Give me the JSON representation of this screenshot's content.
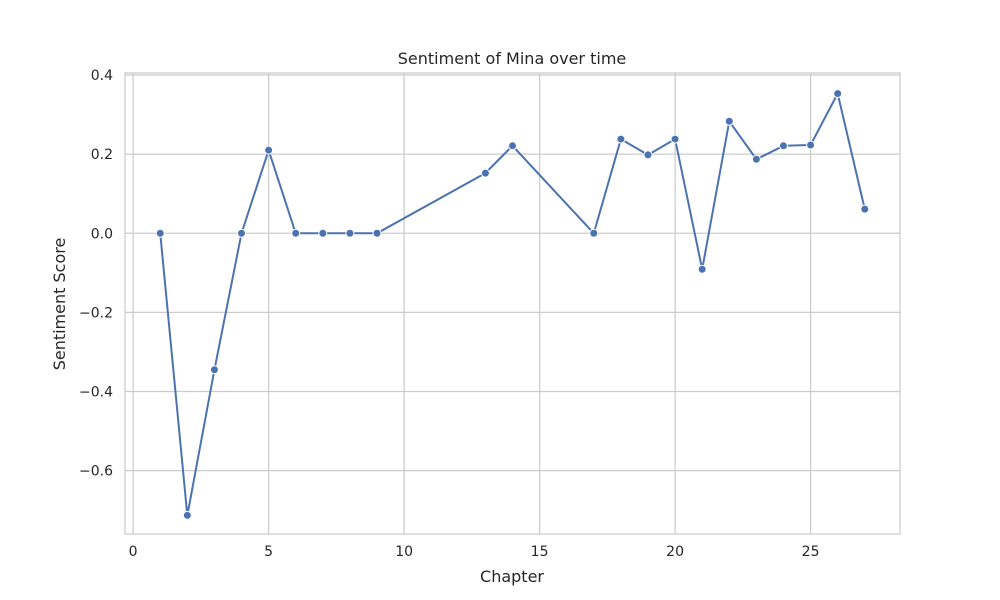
{
  "chart_data": {
    "type": "line",
    "title": "Sentiment of Mina over time",
    "xlabel": "Chapter",
    "ylabel": "Sentiment Score",
    "xlim": [
      -0.3,
      28.3
    ],
    "ylim": [
      -0.76,
      0.405
    ],
    "x_ticks": [
      0,
      5,
      10,
      15,
      20,
      25
    ],
    "x_tick_labels": [
      "0",
      "5",
      "10",
      "15",
      "20",
      "25"
    ],
    "y_ticks": [
      -0.6,
      -0.4,
      -0.2,
      0.0,
      0.2,
      0.4
    ],
    "y_tick_labels": [
      "−0.6",
      "−0.4",
      "−0.2",
      "0.0",
      "0.2",
      "0.4"
    ],
    "grid": true,
    "series": [
      {
        "color": "#4c72b0",
        "x": [
          1,
          2,
          3,
          4,
          5,
          6,
          7,
          8,
          9,
          13,
          14,
          17,
          18,
          19,
          20,
          21,
          22,
          23,
          24,
          25,
          26,
          27
        ],
        "y": [
          0.0,
          -0.713,
          -0.345,
          0.0,
          0.21,
          0.0,
          0.0,
          0.0,
          0.0,
          0.152,
          0.221,
          0.0,
          0.238,
          0.198,
          0.238,
          -0.091,
          0.283,
          0.187,
          0.221,
          0.223,
          0.353,
          0.061
        ]
      }
    ],
    "colors": {
      "line": "#4c72b0",
      "grid": "#cccccc",
      "text": "#262626",
      "background": "#ffffff"
    }
  }
}
